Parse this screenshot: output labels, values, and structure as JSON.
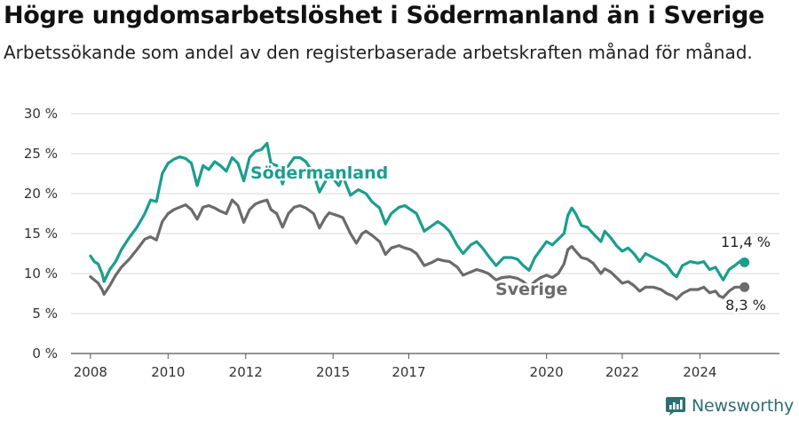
{
  "title": "Högre ungdomsarbetslöshet i Södermanland än i Sverige",
  "subtitle": "Arbetssökande som andel av den registerbaserade arbetskraften månad för månad.",
  "brand": {
    "name": "Newsworthy",
    "icon": "newsworthy-logo-icon",
    "color": "#2d6e73"
  },
  "chart_data": {
    "type": "line",
    "y_tick_labels": [
      "0 %",
      "5 %",
      "10 %",
      "15 %",
      "20 %",
      "25 %",
      "30 %"
    ],
    "y_ticks": [
      0,
      5,
      10,
      15,
      20,
      25,
      30
    ],
    "ylim": [
      0,
      30
    ],
    "xlim": [
      2007.5,
      2025.75
    ],
    "x_tick_labels": [
      "2008",
      "2010",
      "2012",
      "2015",
      "2017",
      "2020",
      "2022",
      "2024"
    ],
    "x_ticks": [
      2008,
      2010,
      2012,
      2014.25,
      2016.2,
      2019.75,
      2021.7,
      2023.7
    ],
    "grid": true,
    "series": [
      {
        "name": "Södermanland",
        "color": "#1a9e8f",
        "end_label": "11,4 %",
        "points": [
          [
            2008.0,
            12.2
          ],
          [
            2008.1,
            11.5
          ],
          [
            2008.2,
            11.2
          ],
          [
            2008.3,
            10.0
          ],
          [
            2008.35,
            9.0
          ],
          [
            2008.5,
            10.5
          ],
          [
            2008.65,
            11.5
          ],
          [
            2008.8,
            13.0
          ],
          [
            2009.0,
            14.5
          ],
          [
            2009.2,
            15.8
          ],
          [
            2009.4,
            17.5
          ],
          [
            2009.55,
            19.2
          ],
          [
            2009.7,
            19.0
          ],
          [
            2009.85,
            22.5
          ],
          [
            2010.0,
            23.8
          ],
          [
            2010.15,
            24.3
          ],
          [
            2010.3,
            24.6
          ],
          [
            2010.45,
            24.4
          ],
          [
            2010.6,
            23.8
          ],
          [
            2010.75,
            21.0
          ],
          [
            2010.9,
            23.5
          ],
          [
            2011.05,
            23.0
          ],
          [
            2011.2,
            24.0
          ],
          [
            2011.35,
            23.5
          ],
          [
            2011.5,
            22.8
          ],
          [
            2011.65,
            24.5
          ],
          [
            2011.8,
            23.8
          ],
          [
            2011.95,
            21.6
          ],
          [
            2012.1,
            24.5
          ],
          [
            2012.25,
            25.3
          ],
          [
            2012.4,
            25.5
          ],
          [
            2012.55,
            26.3
          ],
          [
            2012.65,
            23.8
          ],
          [
            2012.8,
            23.5
          ],
          [
            2012.95,
            21.2
          ],
          [
            2013.1,
            23.5
          ],
          [
            2013.25,
            24.5
          ],
          [
            2013.4,
            24.5
          ],
          [
            2013.55,
            24.0
          ],
          [
            2013.75,
            22.5
          ],
          [
            2013.9,
            20.2
          ],
          [
            2014.05,
            21.5
          ],
          [
            2014.15,
            22.5
          ],
          [
            2014.4,
            21.0
          ],
          [
            2014.5,
            22.2
          ],
          [
            2014.7,
            19.8
          ],
          [
            2014.9,
            20.5
          ],
          [
            2015.1,
            20.0
          ],
          [
            2015.25,
            19.0
          ],
          [
            2015.45,
            18.2
          ],
          [
            2015.6,
            16.2
          ],
          [
            2015.75,
            17.5
          ],
          [
            2015.95,
            18.3
          ],
          [
            2016.1,
            18.5
          ],
          [
            2016.25,
            18.0
          ],
          [
            2016.4,
            17.5
          ],
          [
            2016.6,
            15.3
          ],
          [
            2016.8,
            16.0
          ],
          [
            2016.95,
            16.5
          ],
          [
            2017.1,
            16.0
          ],
          [
            2017.25,
            15.3
          ],
          [
            2017.45,
            13.5
          ],
          [
            2017.6,
            12.5
          ],
          [
            2017.8,
            13.6
          ],
          [
            2017.95,
            14.0
          ],
          [
            2018.1,
            13.2
          ],
          [
            2018.25,
            12.2
          ],
          [
            2018.45,
            11.0
          ],
          [
            2018.65,
            12.0
          ],
          [
            2018.85,
            12.0
          ],
          [
            2019.0,
            11.8
          ],
          [
            2019.15,
            11.0
          ],
          [
            2019.3,
            10.4
          ],
          [
            2019.45,
            12.0
          ],
          [
            2019.6,
            13.0
          ],
          [
            2019.75,
            14.0
          ],
          [
            2019.9,
            13.6
          ],
          [
            2020.05,
            14.3
          ],
          [
            2020.2,
            15.0
          ],
          [
            2020.3,
            17.3
          ],
          [
            2020.4,
            18.2
          ],
          [
            2020.5,
            17.5
          ],
          [
            2020.65,
            16.0
          ],
          [
            2020.8,
            15.8
          ],
          [
            2020.95,
            15.0
          ],
          [
            2021.15,
            14.0
          ],
          [
            2021.25,
            15.3
          ],
          [
            2021.4,
            14.5
          ],
          [
            2021.55,
            13.5
          ],
          [
            2021.7,
            12.8
          ],
          [
            2021.85,
            13.2
          ],
          [
            2022.0,
            12.5
          ],
          [
            2022.15,
            11.5
          ],
          [
            2022.3,
            12.5
          ],
          [
            2022.5,
            12.0
          ],
          [
            2022.7,
            11.5
          ],
          [
            2022.85,
            11.0
          ],
          [
            2023.0,
            10.0
          ],
          [
            2023.1,
            9.6
          ],
          [
            2023.25,
            11.0
          ],
          [
            2023.45,
            11.5
          ],
          [
            2023.65,
            11.3
          ],
          [
            2023.8,
            11.5
          ],
          [
            2023.95,
            10.5
          ],
          [
            2024.1,
            10.8
          ],
          [
            2024.2,
            10.0
          ],
          [
            2024.3,
            9.2
          ],
          [
            2024.45,
            10.5
          ],
          [
            2024.6,
            11.0
          ],
          [
            2024.75,
            11.6
          ],
          [
            2024.85,
            11.4
          ]
        ]
      },
      {
        "name": "Sverige",
        "color": "#6b6b6b",
        "end_label": "8,3 %",
        "points": [
          [
            2008.0,
            9.6
          ],
          [
            2008.1,
            9.2
          ],
          [
            2008.2,
            8.8
          ],
          [
            2008.3,
            8.0
          ],
          [
            2008.35,
            7.4
          ],
          [
            2008.5,
            8.5
          ],
          [
            2008.65,
            9.8
          ],
          [
            2008.8,
            10.8
          ],
          [
            2009.0,
            11.8
          ],
          [
            2009.2,
            13.0
          ],
          [
            2009.4,
            14.3
          ],
          [
            2009.55,
            14.6
          ],
          [
            2009.7,
            14.2
          ],
          [
            2009.85,
            16.5
          ],
          [
            2010.0,
            17.5
          ],
          [
            2010.15,
            18.0
          ],
          [
            2010.3,
            18.3
          ],
          [
            2010.45,
            18.6
          ],
          [
            2010.6,
            18.0
          ],
          [
            2010.75,
            16.8
          ],
          [
            2010.9,
            18.3
          ],
          [
            2011.05,
            18.5
          ],
          [
            2011.2,
            18.2
          ],
          [
            2011.35,
            17.8
          ],
          [
            2011.5,
            17.5
          ],
          [
            2011.65,
            19.2
          ],
          [
            2011.8,
            18.5
          ],
          [
            2011.95,
            16.4
          ],
          [
            2012.1,
            18.0
          ],
          [
            2012.25,
            18.7
          ],
          [
            2012.4,
            19.0
          ],
          [
            2012.55,
            19.2
          ],
          [
            2012.65,
            18.0
          ],
          [
            2012.8,
            17.5
          ],
          [
            2012.95,
            15.8
          ],
          [
            2013.1,
            17.5
          ],
          [
            2013.25,
            18.3
          ],
          [
            2013.4,
            18.5
          ],
          [
            2013.55,
            18.2
          ],
          [
            2013.75,
            17.5
          ],
          [
            2013.9,
            15.7
          ],
          [
            2014.05,
            17.0
          ],
          [
            2014.15,
            17.6
          ],
          [
            2014.4,
            17.2
          ],
          [
            2014.5,
            17.0
          ],
          [
            2014.7,
            15.0
          ],
          [
            2014.85,
            13.8
          ],
          [
            2015.0,
            15.0
          ],
          [
            2015.1,
            15.3
          ],
          [
            2015.25,
            14.8
          ],
          [
            2015.45,
            14.0
          ],
          [
            2015.6,
            12.4
          ],
          [
            2015.75,
            13.2
          ],
          [
            2015.95,
            13.5
          ],
          [
            2016.1,
            13.2
          ],
          [
            2016.25,
            13.0
          ],
          [
            2016.4,
            12.5
          ],
          [
            2016.6,
            11.0
          ],
          [
            2016.8,
            11.4
          ],
          [
            2016.95,
            11.8
          ],
          [
            2017.1,
            11.6
          ],
          [
            2017.25,
            11.5
          ],
          [
            2017.45,
            10.8
          ],
          [
            2017.6,
            9.8
          ],
          [
            2017.8,
            10.2
          ],
          [
            2017.95,
            10.5
          ],
          [
            2018.1,
            10.3
          ],
          [
            2018.25,
            10.0
          ],
          [
            2018.45,
            9.2
          ],
          [
            2018.6,
            9.5
          ],
          [
            2018.8,
            9.6
          ],
          [
            2019.0,
            9.4
          ],
          [
            2019.15,
            9.0
          ],
          [
            2019.3,
            8.3
          ],
          [
            2019.45,
            9.0
          ],
          [
            2019.6,
            9.5
          ],
          [
            2019.75,
            9.8
          ],
          [
            2019.9,
            9.5
          ],
          [
            2020.05,
            10.0
          ],
          [
            2020.2,
            11.2
          ],
          [
            2020.3,
            13.0
          ],
          [
            2020.4,
            13.4
          ],
          [
            2020.5,
            12.8
          ],
          [
            2020.65,
            12.0
          ],
          [
            2020.8,
            11.8
          ],
          [
            2020.95,
            11.3
          ],
          [
            2021.15,
            10.0
          ],
          [
            2021.25,
            10.6
          ],
          [
            2021.4,
            10.2
          ],
          [
            2021.55,
            9.5
          ],
          [
            2021.7,
            8.8
          ],
          [
            2021.85,
            9.0
          ],
          [
            2022.0,
            8.5
          ],
          [
            2022.15,
            7.8
          ],
          [
            2022.3,
            8.3
          ],
          [
            2022.5,
            8.3
          ],
          [
            2022.7,
            8.0
          ],
          [
            2022.85,
            7.5
          ],
          [
            2023.0,
            7.2
          ],
          [
            2023.1,
            6.8
          ],
          [
            2023.25,
            7.5
          ],
          [
            2023.45,
            8.0
          ],
          [
            2023.65,
            8.0
          ],
          [
            2023.8,
            8.3
          ],
          [
            2023.95,
            7.6
          ],
          [
            2024.1,
            7.8
          ],
          [
            2024.2,
            7.2
          ],
          [
            2024.3,
            7.0
          ],
          [
            2024.45,
            7.8
          ],
          [
            2024.6,
            8.3
          ],
          [
            2024.75,
            8.3
          ],
          [
            2024.85,
            8.3
          ]
        ]
      }
    ]
  }
}
